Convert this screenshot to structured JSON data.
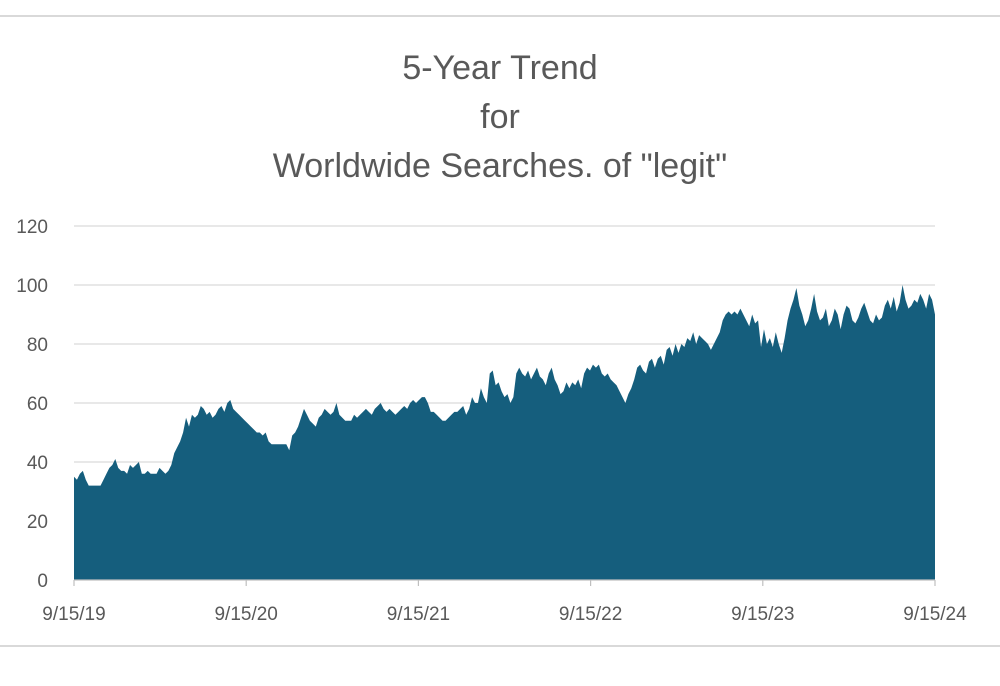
{
  "chart_data": {
    "type": "area",
    "title_lines": [
      "5-Year Trend",
      "for",
      "Worldwide Searches. of \"legit\""
    ],
    "xlabel": "",
    "ylabel": "",
    "ylim": [
      0,
      120
    ],
    "yticks": [
      "0",
      "20",
      "40",
      "60",
      "80",
      "100",
      "120"
    ],
    "xticks": [
      "9/15/19",
      "9/15/20",
      "9/15/21",
      "9/15/22",
      "9/15/23",
      "9/15/24"
    ],
    "grid": true,
    "legend": "none",
    "color": "#155e7d",
    "series": [
      {
        "x_start": "2019-09-15",
        "x_end": "2024-09-15",
        "interval": "weekly",
        "values": [
          35,
          34,
          36,
          37,
          34,
          32,
          32,
          32,
          32,
          32,
          34,
          36,
          38,
          39,
          41,
          38,
          37,
          37,
          36,
          39,
          38,
          39,
          40,
          36,
          36,
          37,
          36,
          36,
          36,
          38,
          37,
          36,
          37,
          39,
          43,
          45,
          47,
          50,
          55,
          52,
          56,
          55,
          56,
          59,
          58,
          56,
          57,
          55,
          56,
          58,
          59,
          57,
          60,
          61,
          58,
          57,
          56,
          55,
          54,
          53,
          52,
          51,
          50,
          50,
          49,
          50,
          47,
          46,
          46,
          46,
          46,
          46,
          46,
          44,
          49,
          50,
          52,
          55,
          58,
          56,
          54,
          53,
          52,
          55,
          56,
          58,
          57,
          56,
          57,
          60,
          56,
          55,
          54,
          54,
          54,
          56,
          55,
          56,
          57,
          58,
          57,
          56,
          58,
          59,
          60,
          58,
          57,
          58,
          57,
          56,
          57,
          58,
          59,
          58,
          60,
          61,
          60,
          61,
          62,
          62,
          60,
          57,
          57,
          56,
          55,
          54,
          54,
          55,
          56,
          57,
          57,
          58,
          59,
          56,
          58,
          62,
          60,
          60,
          65,
          62,
          60,
          70,
          71,
          66,
          67,
          64,
          62,
          63,
          60,
          62,
          70,
          72,
          70,
          69,
          71,
          68,
          70,
          72,
          69,
          68,
          66,
          70,
          72,
          68,
          66,
          63,
          64,
          67,
          65,
          67,
          66,
          68,
          65,
          70,
          72,
          71,
          73,
          72,
          73,
          70,
          69,
          70,
          68,
          67,
          66,
          64,
          62,
          60,
          63,
          65,
          68,
          72,
          73,
          71,
          70,
          74,
          75,
          72,
          75,
          76,
          73,
          78,
          79,
          76,
          80,
          77,
          80,
          79,
          82,
          81,
          84,
          80,
          83,
          82,
          81,
          80,
          78,
          80,
          82,
          84,
          88,
          90,
          91,
          90,
          91,
          90,
          92,
          90,
          88,
          86,
          90,
          87,
          88,
          79,
          85,
          80,
          82,
          79,
          84,
          80,
          77,
          82,
          88,
          92,
          95,
          99,
          93,
          90,
          86,
          88,
          92,
          97,
          91,
          88,
          89,
          92,
          86,
          88,
          92,
          90,
          85,
          90,
          93,
          92,
          88,
          87,
          89,
          92,
          94,
          91,
          88,
          87,
          90,
          88,
          89,
          93,
          95,
          92,
          96,
          91,
          94,
          100,
          95,
          92,
          93,
          95,
          94,
          97,
          95,
          92,
          97,
          95,
          90
        ]
      }
    ]
  }
}
